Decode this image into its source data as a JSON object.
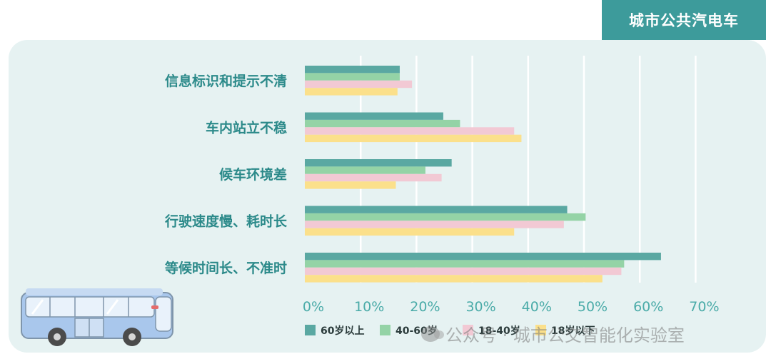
{
  "tag": {
    "label": "城市公共汽电车"
  },
  "watermark": {
    "text": "公众号 · 城市公交智能化实验室"
  },
  "colors": {
    "panel_bg": "#e6f2f2",
    "tag_bg": "#3d9b9b",
    "grid": "#ffffff",
    "category_text": "#2c8a8a",
    "tick_text": "#4aaba8"
  },
  "chart_data": {
    "type": "bar",
    "orientation": "horizontal",
    "title": "",
    "xlabel": "",
    "ylabel": "",
    "xlim": [
      0,
      70
    ],
    "x_ticks": [
      "0%",
      "10%",
      "20%",
      "30%",
      "40%",
      "50%",
      "60%",
      "70%"
    ],
    "grid": true,
    "legend_position": "bottom",
    "categories": [
      "信息标识和提示不清",
      "车内站立不稳",
      "候车环境差",
      "行驶速度慢、耗时长",
      "等候时间长、不准时"
    ],
    "series": [
      {
        "name": "60岁以上",
        "color": "#5aa8a2",
        "values": [
          17,
          24.8,
          26.3,
          47,
          63.8
        ]
      },
      {
        "name": "40-60岁",
        "color": "#94d3a6",
        "values": [
          17,
          27.8,
          21.6,
          50.3,
          57.2
        ]
      },
      {
        "name": "18-40岁",
        "color": "#f2c9d4",
        "values": [
          19.2,
          37.5,
          24.5,
          46.4,
          56.7
        ]
      },
      {
        "name": "18岁以下",
        "color": "#fbe08b",
        "values": [
          16.6,
          38.8,
          16.3,
          37.5,
          53.3
        ]
      }
    ]
  }
}
